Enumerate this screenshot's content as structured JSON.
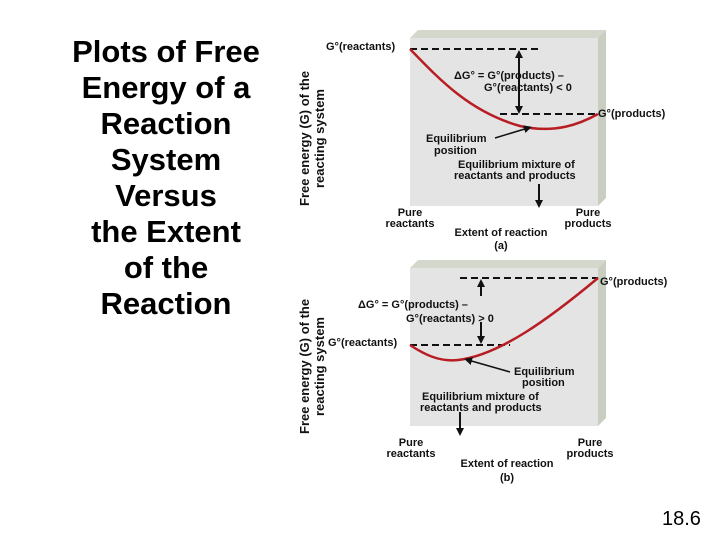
{
  "title_lines": [
    "Plots of Free",
    "Energy of a",
    "Reaction",
    "System",
    "Versus",
    "the Extent",
    "of the",
    "Reaction"
  ],
  "slide_number": "18.6",
  "colors": {
    "panel": "#e4e4e4",
    "panel_edge": "#c8cfc0",
    "curve": "#b81d24"
  },
  "panel_a": {
    "ylabel_line1": "Free energy (G) of the",
    "ylabel_line2": "reacting system",
    "g_reactants": "G°(reactants)",
    "g_products": "G°(products)",
    "delta_line1": "ΔG° = G°(products) –",
    "delta_line2": "G°(reactants) < 0",
    "eq_pos_line1": "Equilibrium",
    "eq_pos_line2": "position",
    "eq_mix_line1": "Equilibrium mixture of",
    "eq_mix_line2": "reactants and products",
    "pure_reactants_line1": "Pure",
    "pure_reactants_line2": "reactants",
    "pure_products_line1": "Pure",
    "pure_products_line2": "products",
    "xlabel": "Extent of reaction",
    "caption": "(a)"
  },
  "panel_b": {
    "ylabel_line1": "Free energy (G) of the",
    "ylabel_line2": "reacting system",
    "g_reactants": "G°(reactants)",
    "g_products": "G°(products)",
    "delta_line1": "ΔG° = G°(products) –",
    "delta_line2": "G°(reactants) > 0",
    "eq_pos_line1": "Equilibrium",
    "eq_pos_line2": "position",
    "eq_mix_line1": "Equilibrium mixture of",
    "eq_mix_line2": "reactants and products",
    "pure_reactants_line1": "Pure",
    "pure_reactants_line2": "reactants",
    "pure_products_line1": "Pure",
    "pure_products_line2": "products",
    "xlabel": "Extent of reaction",
    "caption": "(b)"
  }
}
